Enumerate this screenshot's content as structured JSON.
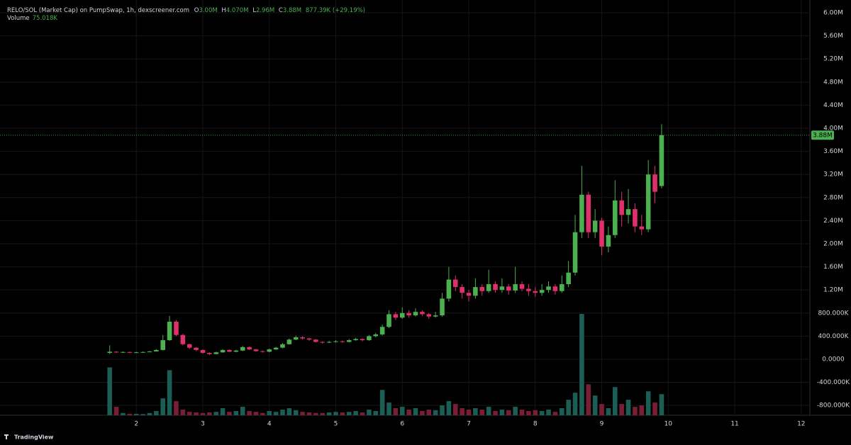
{
  "chart_data": {
    "type": "candlestick",
    "title": "RELO/SOL (Market Cap) on PumpSwap, 1h, dexscreener.com",
    "legend_values": {
      "open_label": "O",
      "open": "3.00M",
      "high_label": "H",
      "high": "4.070M",
      "low_label": "L",
      "low": "2.96M",
      "close_label": "C",
      "close": "3.88M",
      "change": "877.39K (+29.19%)"
    },
    "volume_label": "Volume",
    "volume_value": "75.018K",
    "watermark": "TradingView",
    "up_color": "#4caf50",
    "down_color": "#e0306a",
    "volume_up_color": "#1b5e55",
    "volume_down_color": "#7a1e35",
    "grid": true,
    "xlim": [
      -0.05,
      12.13
    ],
    "xticks": [
      2,
      3,
      4,
      5,
      6,
      7,
      8,
      9,
      10,
      11,
      12
    ],
    "ylim": [
      -970000,
      6160000
    ],
    "yticks": [
      {
        "value": -800000,
        "label": "-800.000K"
      },
      {
        "value": -400000,
        "label": "-400.000K"
      },
      {
        "value": 0,
        "label": "0.0000"
      },
      {
        "value": 400000,
        "label": "400.000K"
      },
      {
        "value": 800000,
        "label": "800.000K"
      },
      {
        "value": 1200000,
        "label": "1.20M"
      },
      {
        "value": 1600000,
        "label": "1.60M"
      },
      {
        "value": 2000000,
        "label": "2.00M"
      },
      {
        "value": 2400000,
        "label": "2.40M"
      },
      {
        "value": 2800000,
        "label": "2.80M"
      },
      {
        "value": 3200000,
        "label": "3.20M"
      },
      {
        "value": 3600000,
        "label": "3.60M"
      },
      {
        "value": 4000000,
        "label": "4.00M"
      },
      {
        "value": 4400000,
        "label": "4.40M"
      },
      {
        "value": 4800000,
        "label": "4.80M"
      },
      {
        "value": 5200000,
        "label": "5.20M"
      },
      {
        "value": 5600000,
        "label": "5.60M"
      },
      {
        "value": 6000000,
        "label": "6.00M"
      }
    ],
    "x": [
      1.6,
      1.7,
      1.8,
      1.9,
      2.0,
      2.1,
      2.2,
      2.3,
      2.4,
      2.5,
      2.6,
      2.7,
      2.8,
      2.9,
      3.0,
      3.1,
      3.2,
      3.3,
      3.4,
      3.5,
      3.6,
      3.7,
      3.8,
      3.9,
      4.0,
      4.1,
      4.2,
      4.3,
      4.4,
      4.5,
      4.6,
      4.7,
      4.8,
      4.9,
      5.0,
      5.1,
      5.2,
      5.3,
      5.4,
      5.5,
      5.6,
      5.7,
      5.8,
      5.9,
      6.0,
      6.1,
      6.2,
      6.3,
      6.4,
      6.5,
      6.6,
      6.7,
      6.8,
      6.9,
      7.0,
      7.1,
      7.2,
      7.3,
      7.4,
      7.5,
      7.6,
      7.7,
      7.8,
      7.9,
      8.0,
      8.1,
      8.2,
      8.3,
      8.4,
      8.5,
      8.6,
      8.7,
      8.8,
      8.9,
      9.0,
      9.1,
      9.2,
      9.3,
      9.4,
      9.5,
      9.6,
      9.7,
      9.8,
      9.9
    ],
    "open": [
      110000,
      130000,
      120000,
      125000,
      115000,
      120000,
      125000,
      135000,
      160000,
      330000,
      650000,
      420000,
      260000,
      200000,
      160000,
      110000,
      90000,
      120000,
      160000,
      130000,
      150000,
      210000,
      170000,
      140000,
      130000,
      170000,
      200000,
      260000,
      340000,
      380000,
      360000,
      340000,
      300000,
      290000,
      300000,
      310000,
      300000,
      330000,
      350000,
      330000,
      400000,
      430000,
      560000,
      780000,
      720000,
      800000,
      760000,
      820000,
      780000,
      740000,
      760000,
      1050000,
      1380000,
      1250000,
      1150000,
      1100000,
      1250000,
      1180000,
      1300000,
      1200000,
      1260000,
      1190000,
      1300000,
      1220000,
      1180000,
      1150000,
      1200000,
      1260000,
      1180000,
      1300000,
      1500000,
      2200000,
      2850000,
      2200000,
      2400000,
      1950000,
      2150000,
      2750000,
      2500000,
      2600000,
      2300000,
      2250000,
      3200000,
      3000000
    ],
    "high": [
      240000,
      140000,
      135000,
      130000,
      130000,
      135000,
      145000,
      175000,
      420000,
      750000,
      680000,
      440000,
      270000,
      210000,
      170000,
      120000,
      130000,
      175000,
      170000,
      165000,
      230000,
      220000,
      180000,
      150000,
      185000,
      215000,
      280000,
      360000,
      410000,
      400000,
      370000,
      350000,
      310000,
      320000,
      330000,
      325000,
      350000,
      370000,
      360000,
      420000,
      460000,
      600000,
      850000,
      820000,
      900000,
      850000,
      880000,
      850000,
      800000,
      820000,
      1150000,
      1600000,
      1450000,
      1300000,
      1200000,
      1400000,
      1300000,
      1550000,
      1350000,
      1400000,
      1300000,
      1600000,
      1350000,
      1300000,
      1250000,
      1300000,
      1350000,
      1300000,
      1450000,
      1700000,
      2500000,
      3350000,
      2900000,
      2600000,
      2450000,
      2300000,
      3100000,
      2900000,
      2950000,
      2700000,
      2500000,
      3450000,
      3350000,
      4070000
    ],
    "low": [
      90000,
      110000,
      110000,
      105000,
      110000,
      115000,
      120000,
      130000,
      150000,
      320000,
      400000,
      240000,
      180000,
      140000,
      100000,
      70000,
      85000,
      110000,
      120000,
      120000,
      140000,
      160000,
      130000,
      115000,
      120000,
      160000,
      190000,
      250000,
      330000,
      340000,
      320000,
      290000,
      270000,
      280000,
      290000,
      285000,
      290000,
      320000,
      310000,
      320000,
      380000,
      410000,
      540000,
      680000,
      700000,
      720000,
      740000,
      750000,
      700000,
      720000,
      740000,
      1000000,
      1180000,
      1050000,
      1000000,
      1050000,
      1100000,
      1150000,
      1150000,
      1150000,
      1120000,
      1150000,
      1180000,
      1100000,
      1080000,
      1100000,
      1150000,
      1120000,
      1150000,
      1250000,
      1450000,
      2100000,
      2100000,
      2100000,
      1800000,
      1850000,
      2100000,
      2300000,
      2350000,
      2200000,
      2150000,
      2200000,
      2700000,
      2960000
    ],
    "close": [
      130000,
      120000,
      125000,
      115000,
      120000,
      125000,
      135000,
      160000,
      330000,
      650000,
      420000,
      260000,
      200000,
      160000,
      110000,
      90000,
      120000,
      160000,
      130000,
      150000,
      210000,
      170000,
      140000,
      130000,
      170000,
      200000,
      260000,
      340000,
      380000,
      360000,
      340000,
      300000,
      290000,
      300000,
      310000,
      300000,
      330000,
      350000,
      330000,
      400000,
      430000,
      560000,
      780000,
      720000,
      800000,
      760000,
      820000,
      780000,
      740000,
      760000,
      1050000,
      1380000,
      1250000,
      1150000,
      1100000,
      1250000,
      1180000,
      1300000,
      1200000,
      1260000,
      1190000,
      1300000,
      1220000,
      1180000,
      1150000,
      1200000,
      1260000,
      1180000,
      1300000,
      1500000,
      2200000,
      2850000,
      2200000,
      2400000,
      1950000,
      2150000,
      2750000,
      2500000,
      2600000,
      2300000,
      2250000,
      3200000,
      2900000,
      3880000
    ],
    "volume": [
      170000,
      30000,
      8000,
      5000,
      5000,
      4000,
      8000,
      15000,
      60000,
      160000,
      50000,
      20000,
      12000,
      10000,
      8000,
      10000,
      12000,
      25000,
      12000,
      15000,
      30000,
      15000,
      12000,
      8000,
      15000,
      12000,
      20000,
      25000,
      18000,
      12000,
      10000,
      8000,
      8000,
      10000,
      12000,
      10000,
      12000,
      15000,
      10000,
      20000,
      15000,
      90000,
      45000,
      25000,
      30000,
      20000,
      25000,
      15000,
      20000,
      18000,
      35000,
      50000,
      40000,
      25000,
      20000,
      25000,
      20000,
      30000,
      15000,
      20000,
      18000,
      30000,
      20000,
      15000,
      18000,
      15000,
      20000,
      12000,
      25000,
      55000,
      80000,
      360000,
      110000,
      70000,
      40000,
      25000,
      100000,
      40000,
      55000,
      30000,
      35000,
      85000,
      45000,
      75018
    ]
  }
}
